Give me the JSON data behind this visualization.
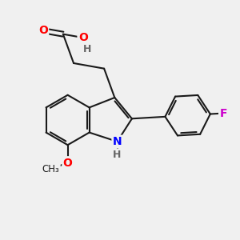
{
  "background_color": "#f0f0f0",
  "bond_color": "#1a1a1a",
  "atom_colors": {
    "O": "#ff0000",
    "N": "#0000ff",
    "F": "#cc00cc",
    "H": "#666666",
    "C": "#1a1a1a"
  },
  "figsize": [
    3.0,
    3.0
  ],
  "dpi": 100
}
